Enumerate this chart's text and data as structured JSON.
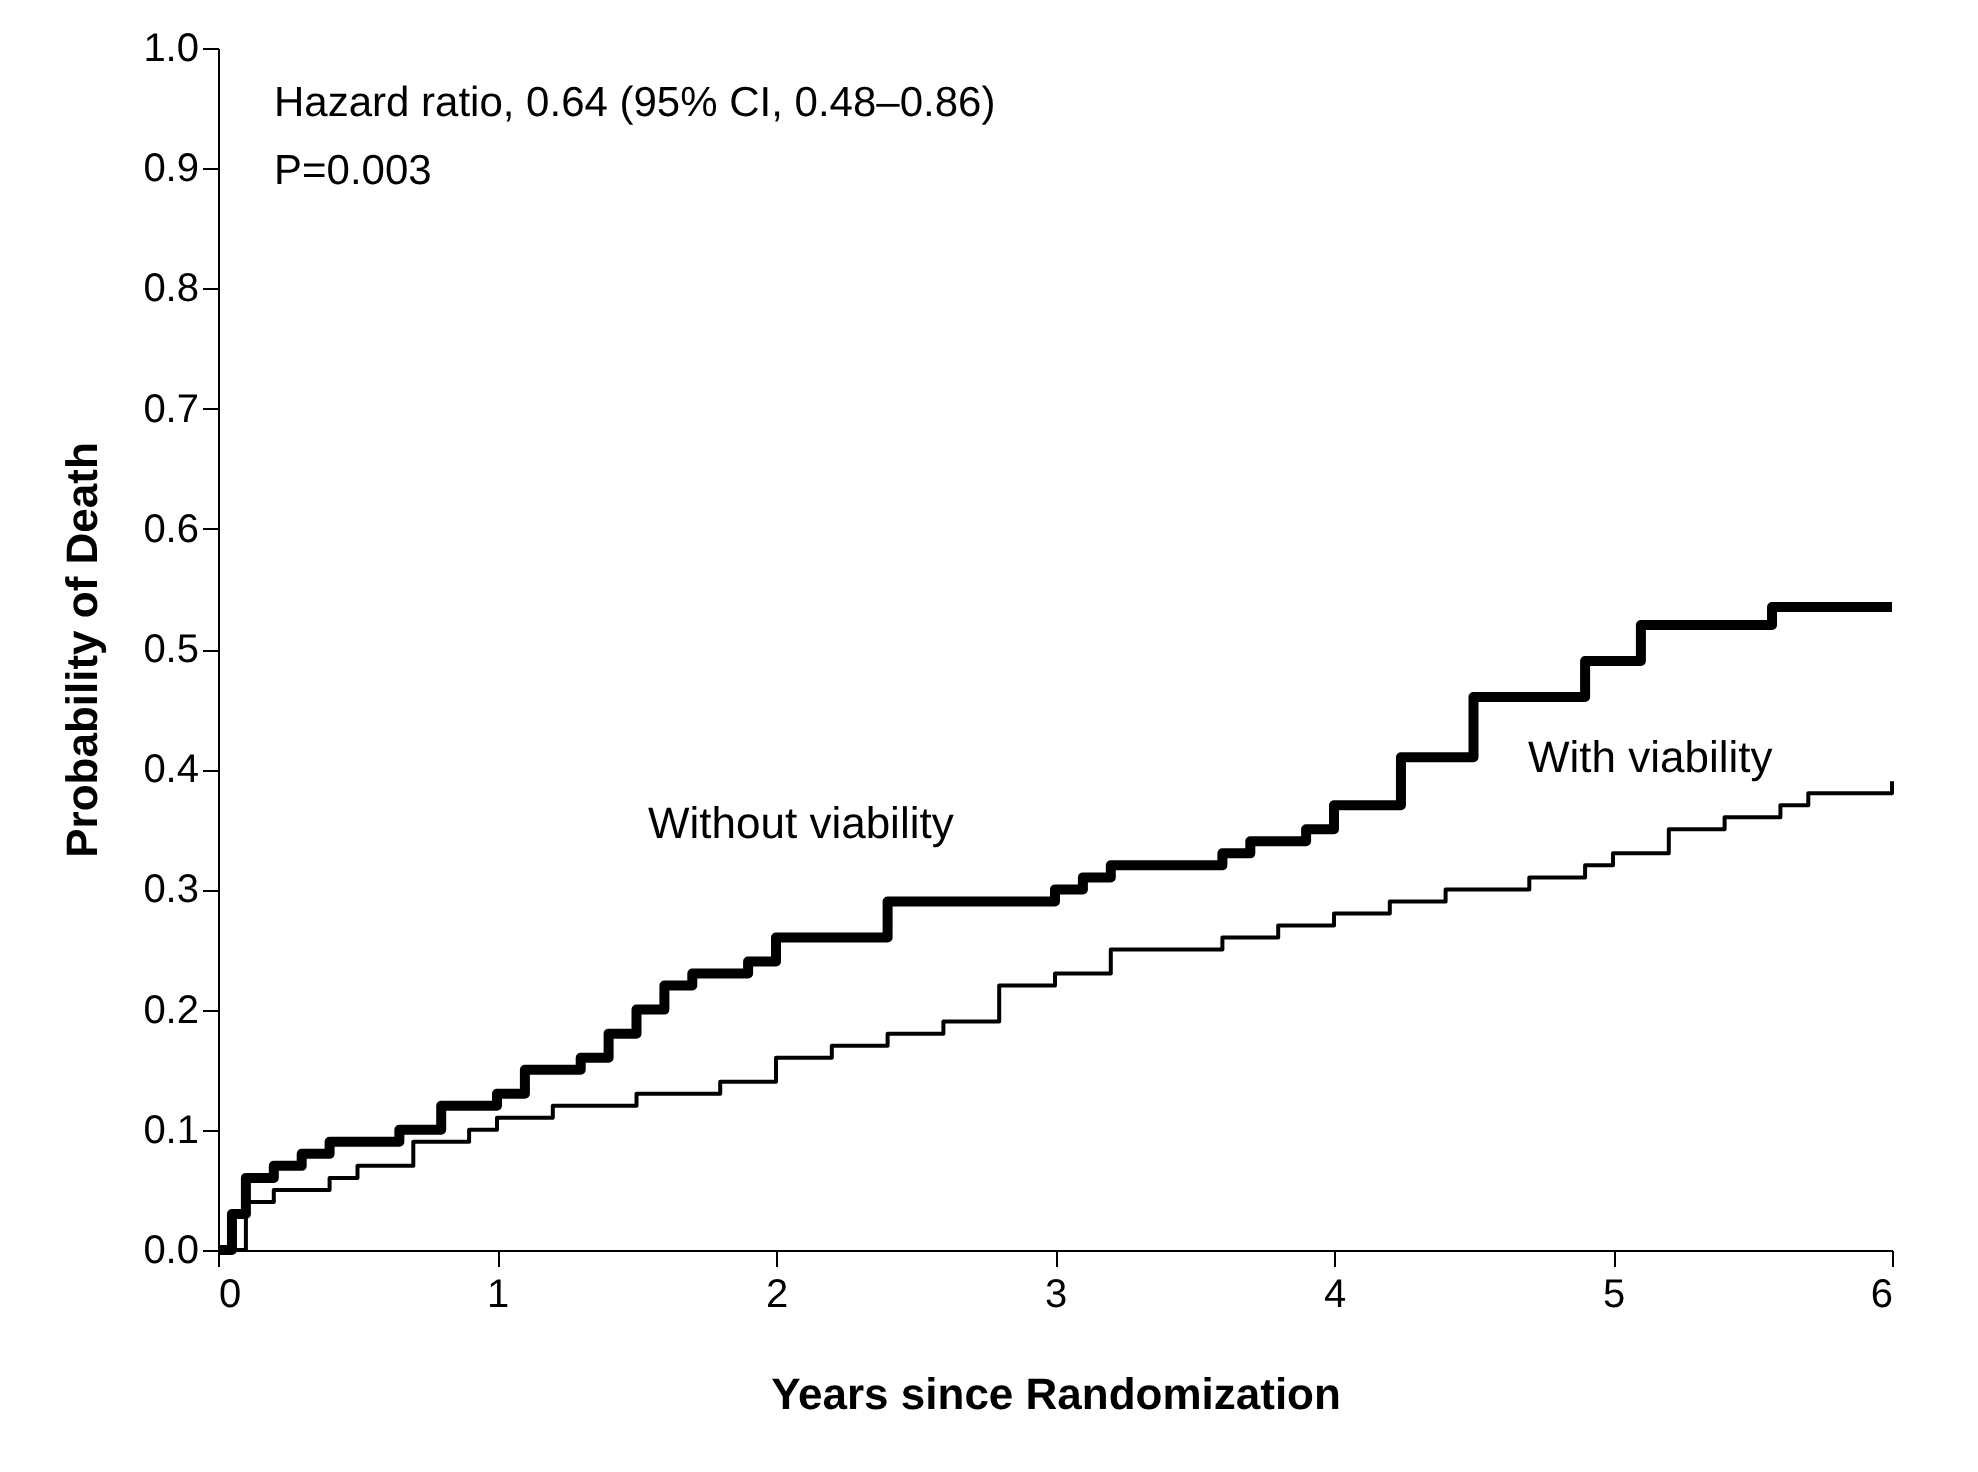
{
  "chart_data": {
    "type": "step",
    "xlabel": "Years since Randomization",
    "ylabel": "Probability of Death",
    "annotations": [
      "Hazard ratio, 0.64 (95% CI, 0.48–0.86)",
      "P=0.003"
    ],
    "xlim": [
      0,
      6
    ],
    "xticks": [
      0,
      1,
      2,
      3,
      4,
      5,
      6
    ],
    "ylim": [
      0,
      1
    ],
    "yticks": [
      {
        "value": 0,
        "label": "0.0"
      },
      0.1,
      0.2,
      0.3,
      0.4,
      0.5,
      0.6,
      0.7,
      0.8,
      0.9,
      {
        "value": 1,
        "label": "1.0"
      }
    ],
    "grid": false,
    "legend": false,
    "marker": "none",
    "line_style": "solid",
    "series": [
      {
        "name": "Without viability",
        "color": "#000000",
        "x": [
          0,
          0.05,
          0.1,
          0.2,
          0.3,
          0.4,
          0.65,
          0.8,
          1.0,
          1.1,
          1.3,
          1.4,
          1.5,
          1.6,
          1.7,
          1.9,
          2.0,
          2.4,
          3.0,
          3.1,
          3.2,
          3.6,
          3.7,
          3.9,
          4.0,
          4.24,
          4.5,
          4.9,
          5.1,
          5.57,
          6.0
        ],
        "values": [
          0,
          0.03,
          0.06,
          0.07,
          0.08,
          0.09,
          0.1,
          0.12,
          0.13,
          0.15,
          0.16,
          0.18,
          0.2,
          0.22,
          0.23,
          0.24,
          0.26,
          0.29,
          0.3,
          0.31,
          0.32,
          0.33,
          0.34,
          0.35,
          0.37,
          0.41,
          0.46,
          0.49,
          0.52,
          0.535,
          0.535
        ]
      },
      {
        "name": "With viability",
        "color": "#000000",
        "x": [
          0,
          0.1,
          0.2,
          0.4,
          0.5,
          0.7,
          0.9,
          1.0,
          1.2,
          1.5,
          1.8,
          2.0,
          2.2,
          2.4,
          2.6,
          2.8,
          3.0,
          3.2,
          3.6,
          3.8,
          4.0,
          4.2,
          4.4,
          4.7,
          4.9,
          5.0,
          5.2,
          5.4,
          5.6,
          5.7,
          6.0
        ],
        "values": [
          0,
          0.04,
          0.05,
          0.06,
          0.07,
          0.09,
          0.1,
          0.11,
          0.12,
          0.13,
          0.14,
          0.16,
          0.17,
          0.18,
          0.19,
          0.22,
          0.23,
          0.25,
          0.26,
          0.27,
          0.28,
          0.29,
          0.3,
          0.31,
          0.32,
          0.33,
          0.35,
          0.36,
          0.37,
          0.38,
          0.39
        ]
      }
    ]
  }
}
